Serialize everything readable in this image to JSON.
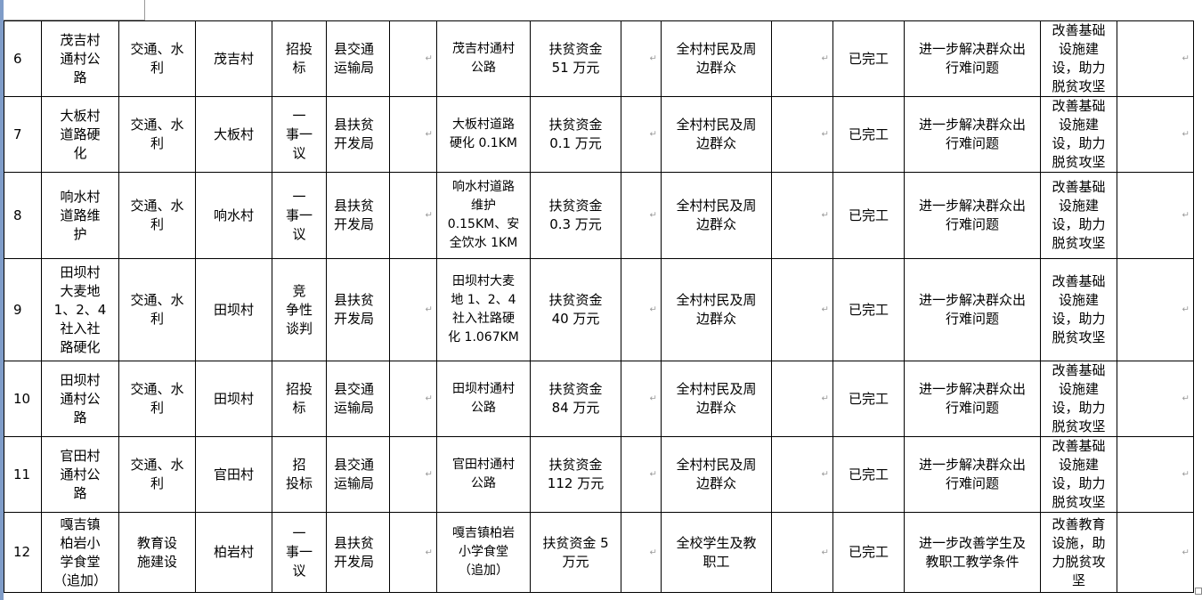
{
  "rows": [
    {
      "no": "6",
      "name": "茂吉村\n通村公\n路",
      "type": "交通、水\n利",
      "village": "茂吉村",
      "method": "招投\n标",
      "dept": "县交通\n运输局",
      "content": "茂吉村通村\n公路",
      "fund": "扶贫资金\n51 万元",
      "beneficiary": "全村村民及周\n边群众",
      "status": "已完工",
      "effect": "进一步解决群众出\n行难问题",
      "goal": "改善基础\n设施建\n设，助力\n脱贫攻坚"
    },
    {
      "no": "7",
      "name": "大板村\n道路硬\n化",
      "type": "交通、水\n利",
      "village": "大板村",
      "method": "一\n事一\n议",
      "dept": "县扶贫\n开发局",
      "content": "大板村道路\n硬化 0.1KM",
      "fund": "扶贫资金\n0.1 万元",
      "beneficiary": "全村村民及周\n边群众",
      "status": "已完工",
      "effect": "进一步解决群众出\n行难问题",
      "goal": "改善基础\n设施建\n设，助力\n脱贫攻坚"
    },
    {
      "no": "8",
      "name": "响水村\n道路维\n护",
      "type": "交通、水\n利",
      "village": "响水村",
      "method": "一\n事一\n议",
      "dept": "县扶贫\n开发局",
      "content": "响水村道路\n维护\n0.15KM、安\n全饮水 1KM",
      "fund": "扶贫资金\n0.3 万元",
      "beneficiary": "全村村民及周\n边群众",
      "status": "已完工",
      "effect": "进一步解决群众出\n行难问题",
      "goal": "改善基础\n设施建\n设，助力\n脱贫攻坚"
    },
    {
      "no": "9",
      "name": "田坝村\n大麦地\n1、2、4\n社入社\n路硬化",
      "type": "交通、水\n利",
      "village": "田坝村",
      "method": "竞\n争性\n谈判",
      "dept": "县扶贫\n开发局",
      "content": "田坝村大麦\n地 1、2、4\n社入社路硬\n化 1.067KM",
      "fund": "扶贫资金\n40 万元",
      "beneficiary": "全村村民及周\n边群众",
      "status": "已完工",
      "effect": "进一步解决群众出\n行难问题",
      "goal": "改善基础\n设施建\n设，助力\n脱贫攻坚"
    },
    {
      "no": "10",
      "name": "田坝村\n通村公\n路",
      "type": "交通、水\n利",
      "village": "田坝村",
      "method": "招投\n标",
      "dept": "县交通\n运输局",
      "content": "田坝村通村\n公路",
      "fund": "扶贫资金\n84 万元",
      "beneficiary": "全村村民及周\n边群众",
      "status": "已完工",
      "effect": "进一步解决群众出\n行难问题",
      "goal": "改善基础\n设施建\n设，助力\n脱贫攻坚"
    },
    {
      "no": "11",
      "name": "官田村\n通村公\n路",
      "type": "交通、水\n利",
      "village": "官田村",
      "method": "招\n投标",
      "dept": "县交通\n运输局",
      "content": "官田村通村\n公路",
      "fund": "扶贫资金\n112 万元",
      "beneficiary": "全村村民及周\n边群众",
      "status": "已完工",
      "effect": "进一步解决群众出\n行难问题",
      "goal": "改善基础\n设施建\n设，助力\n脱贫攻坚"
    },
    {
      "no": "12",
      "name": "嘎吉镇\n柏岩小\n学食堂\n（追加）",
      "type": "教育设\n施建设",
      "village": "柏岩村",
      "method": "一\n事一\n议",
      "dept": "县扶贫\n开发局",
      "content": "嘎吉镇柏岩\n小学食堂\n（追加）",
      "fund": "扶贫资金 5\n万元",
      "beneficiary": "全校学生及教\n职工",
      "status": "已完工",
      "effect": "进一步改善学生及\n教职工教学条件",
      "goal": "改善教育\n设施，助\n力脱贫攻\n坚"
    }
  ]
}
